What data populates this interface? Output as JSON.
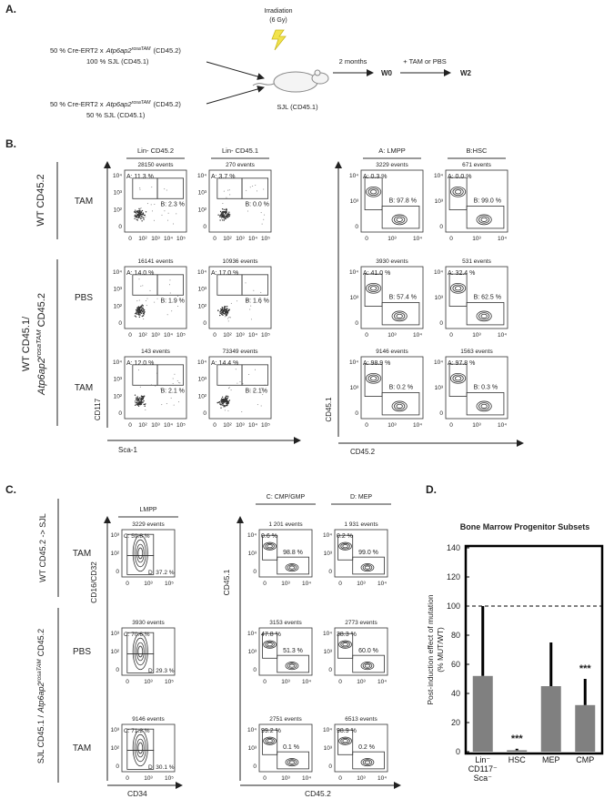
{
  "panel_a": {
    "label": "A.",
    "irradiation": [
      "Irradiation",
      "(6 Gy)"
    ],
    "donor_1": {
      "prefix": "50 % Cre-ERT2 x",
      "gene": "Atp6ap2",
      "allele": "rosaTAM",
      "suffix": "(CD45.2)",
      "recipient": "100 % SJL (CD45.1)"
    },
    "donor_2": {
      "prefix": "50 % Cre-ERT2 x",
      "gene": "Atp6ap2",
      "allele": "rosaTAM",
      "suffix": "(CD45.2)",
      "recipient": "50 % SJL (CD45.1)"
    },
    "host": "SJL (CD45.1)",
    "interval": "2 months",
    "start": "W0",
    "treatment": "+ TAM or PBS",
    "end": "W2"
  },
  "panel_b": {
    "label": "B.",
    "headers": [
      "Lin- CD45.2",
      "Lin- CD45.1",
      "A: LMPP",
      "B:HSC"
    ],
    "group_1": "WT CD45.2",
    "group_2": {
      "line1": "WT CD45.1/",
      "gene": "Atp6ap2",
      "allele": "rosaTAM",
      "suffix": "CD45.2"
    },
    "rows": [
      "TAM",
      "PBS",
      "TAM"
    ],
    "axes": {
      "left_y": "CD117",
      "left_x": "Sca-1",
      "right_y": "CD45.1",
      "right_x": "CD45.2"
    },
    "left_xticks": [
      "0",
      "10²",
      "10³",
      "10⁴",
      "10⁵"
    ],
    "left_yticks": [
      "0",
      "10²",
      "10³",
      "10⁴"
    ],
    "right_xticks": [
      "0",
      "10³",
      "10⁴"
    ],
    "right_yticks": [
      "0",
      "10³",
      "10⁴"
    ],
    "plots": [
      [
        {
          "events": "28150 events",
          "gate_1": "A: 11.3 %",
          "gate_2": "B: 2.3 %"
        },
        {
          "events": "270 events",
          "gate_1": "A: 3.7 %",
          "gate_2": "B: 0.0 %"
        },
        {
          "events": "3229 events",
          "gate_1": "A: 0.3 %",
          "gate_2": "B: 97.8 %"
        },
        {
          "events": "671 events",
          "gate_1": "A: 0.0 %",
          "gate_2": "B: 99.0 %"
        }
      ],
      [
        {
          "events": "16141 events",
          "gate_1": "A: 14.0 %",
          "gate_2": "B: 1.9 %"
        },
        {
          "events": "10936 events",
          "gate_1": "A: 17.0 %",
          "gate_2": "B: 1.6 %"
        },
        {
          "events": "3930 events",
          "gate_1": "A: 41.0 %",
          "gate_2": "B: 57.4 %"
        },
        {
          "events": "531 events",
          "gate_1": "A: 32.4 %",
          "gate_2": "B: 62.5 %"
        }
      ],
      [
        {
          "events": "143 events",
          "gate_1": "A: 12.0 %",
          "gate_2": "B: 2.1 %"
        },
        {
          "events": "73349 events",
          "gate_1": "A: 14.4 %",
          "gate_2": "B: 2.1%"
        },
        {
          "events": "9146 events",
          "gate_1": "A: 98.9 %",
          "gate_2": "B: 0.2 %"
        },
        {
          "events": "1563 events",
          "gate_1": "A: 97.8 %",
          "gate_2": "B: 0.3 %"
        }
      ]
    ]
  },
  "panel_c": {
    "label": "C.",
    "headers": [
      "LMPP",
      "C: CMP/GMP",
      "D: MEP"
    ],
    "group_1": "WT CD45.2 -> SJL",
    "group_2": {
      "prefix": "SJL CD45.1 /",
      "gene": "Atp6ap2",
      "allele": "rosaTAM",
      "suffix": "CD45.2"
    },
    "rows": [
      "TAM",
      "PBS",
      "TAM"
    ],
    "axes": {
      "left_y": "CD16/CD32",
      "left_x": "CD34",
      "right_y": "CD45.1",
      "right_x": "CD45.2"
    },
    "left_xticks": [
      "0",
      "10³",
      "10⁵"
    ],
    "left_yticks": [
      "0",
      "10²",
      "10³"
    ],
    "right_xticks": [
      "0",
      "10³",
      "10⁴"
    ],
    "right_yticks": [
      "0",
      "10³",
      "10⁴"
    ],
    "plots": [
      [
        {
          "events": "3229 events",
          "gate_1": "C: 59.8 %",
          "gate_2": "D: 37.2 %"
        },
        {
          "events": "1 201 events",
          "gate_1": "0.6 %",
          "gate_2": "98.8 %"
        },
        {
          "events": "1 931 events",
          "gate_1": "0.2 %",
          "gate_2": "99.0 %"
        }
      ],
      [
        {
          "events": "3930 events",
          "gate_1": "C: 70.6 %",
          "gate_2": "D: 29.3 %"
        },
        {
          "events": "3153 events",
          "gate_1": "47.8 %",
          "gate_2": "51.3 %"
        },
        {
          "events": "2773 events",
          "gate_1": "38.3 %",
          "gate_2": "60.0 %"
        }
      ],
      [
        {
          "events": "9146 events",
          "gate_1": "C: 71.2 %",
          "gate_2": "D: 30.1 %"
        },
        {
          "events": "2751 events",
          "gate_1": "99.2 %",
          "gate_2": "0.1 %"
        },
        {
          "events": "6513 events",
          "gate_1": "98.9 %",
          "gate_2": "0.2 %"
        }
      ]
    ]
  },
  "panel_d_label": "D.",
  "chart_data": {
    "type": "bar",
    "title": "Bone Marrow Progenitor Subsets",
    "ylabel": [
      "Post-induction effect of mutation",
      "(% MUT/WT)"
    ],
    "categories": [
      "Lin⁻ CD117⁻ Sca⁻",
      "HSC",
      "MEP",
      "CMP"
    ],
    "values": [
      52,
      1,
      45,
      32
    ],
    "errors": [
      48,
      1,
      30,
      18
    ],
    "color": "#808080",
    "error_color": "#000000",
    "ylim": [
      0,
      140
    ],
    "yticks": [
      0,
      20,
      40,
      60,
      80,
      100,
      120,
      140
    ],
    "hline": 100,
    "annotations": [
      {
        "text": "***",
        "category": "HSC"
      },
      {
        "text": "***",
        "category": "CMP"
      }
    ]
  }
}
